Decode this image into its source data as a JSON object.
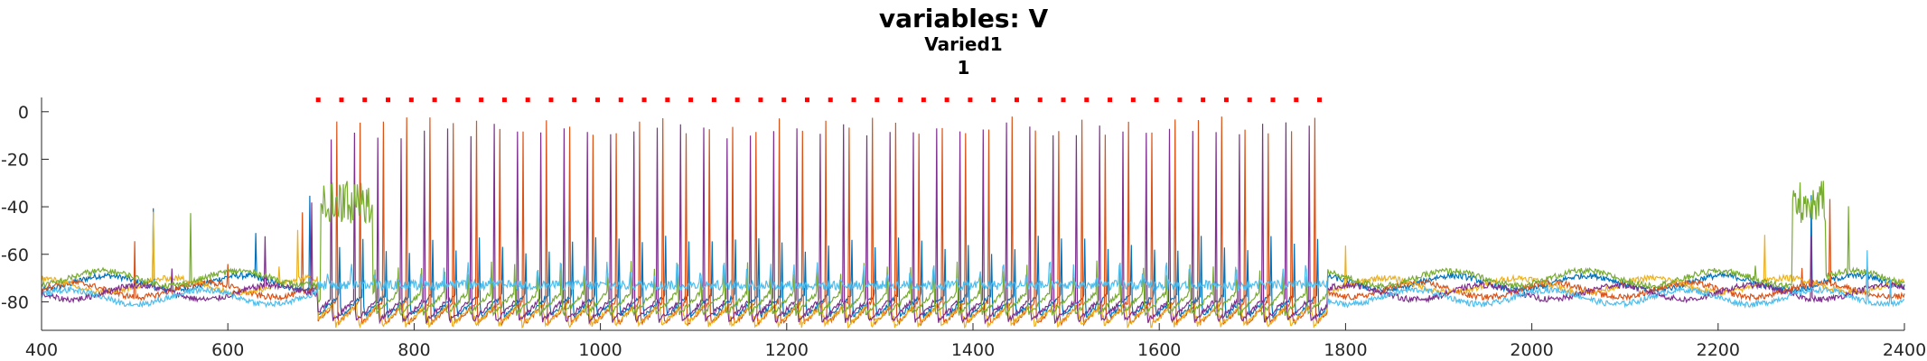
{
  "title": "variables: V",
  "subtitle": "Varied1",
  "subtitle2": "1",
  "chart_data": {
    "type": "line",
    "title": "variables: V",
    "subtitle": [
      "Varied1",
      "1"
    ],
    "xlabel": "",
    "ylabel": "",
    "xlim": [
      400,
      2400
    ],
    "ylim": [
      -92,
      6
    ],
    "xticks": [
      400,
      600,
      800,
      1000,
      1200,
      1400,
      1600,
      1800,
      2000,
      2200,
      2400
    ],
    "yticks": [
      0,
      -20,
      -40,
      -60,
      -80
    ],
    "grid": false,
    "legend": "none",
    "stimulus_markers": {
      "color": "#ff0000",
      "y": 5,
      "x": [
        697,
        722,
        747,
        772,
        797,
        822,
        847,
        872,
        897,
        922,
        947,
        972,
        997,
        1022,
        1047,
        1072,
        1097,
        1122,
        1147,
        1172,
        1197,
        1222,
        1247,
        1272,
        1297,
        1322,
        1347,
        1372,
        1397,
        1422,
        1447,
        1472,
        1497,
        1522,
        1547,
        1572,
        1597,
        1622,
        1647,
        1672,
        1697,
        1722,
        1747,
        1772
      ]
    },
    "series": [
      {
        "color": "#0072bd",
        "rest": -72,
        "trough": -86,
        "burst_range": [],
        "pre_spikes": [
          520,
          630,
          688
        ],
        "driven_peak": -40,
        "post_spikes": [
          2270,
          2300,
          2360
        ]
      },
      {
        "color": "#d95319",
        "rest": -75,
        "trough": -89,
        "burst_range": [],
        "pre_spikes": [
          500,
          600,
          680
        ],
        "driven_peak": -10,
        "post_spikes": [
          2290,
          2320
        ]
      },
      {
        "color": "#edb120",
        "rest": -73,
        "trough": -90,
        "burst_range": [],
        "pre_spikes": [
          520,
          655,
          675
        ],
        "driven_peak": -70,
        "post_spikes": [
          1800,
          2250,
          2330
        ]
      },
      {
        "color": "#7e2f8e",
        "rest": -76,
        "trough": -88,
        "burst_range": [],
        "pre_spikes": [
          540,
          640,
          690
        ],
        "driven_peak": -12,
        "post_spikes": [
          2300,
          2360
        ]
      },
      {
        "color": "#77ac30",
        "rest": -70,
        "trough": -85,
        "burst_range": [
          [
            700,
            755
          ],
          [
            2280,
            2315
          ]
        ],
        "pre_spikes": [
          560,
          650
        ],
        "driven_peak": -50,
        "post_spikes": [
          2240,
          2340
        ]
      },
      {
        "color": "#4dbeee",
        "rest": -78,
        "trough": -82,
        "burst_range": [],
        "pre_spikes": [],
        "driven_peak": -68,
        "post_spikes": [
          2360,
          2385
        ]
      }
    ]
  }
}
